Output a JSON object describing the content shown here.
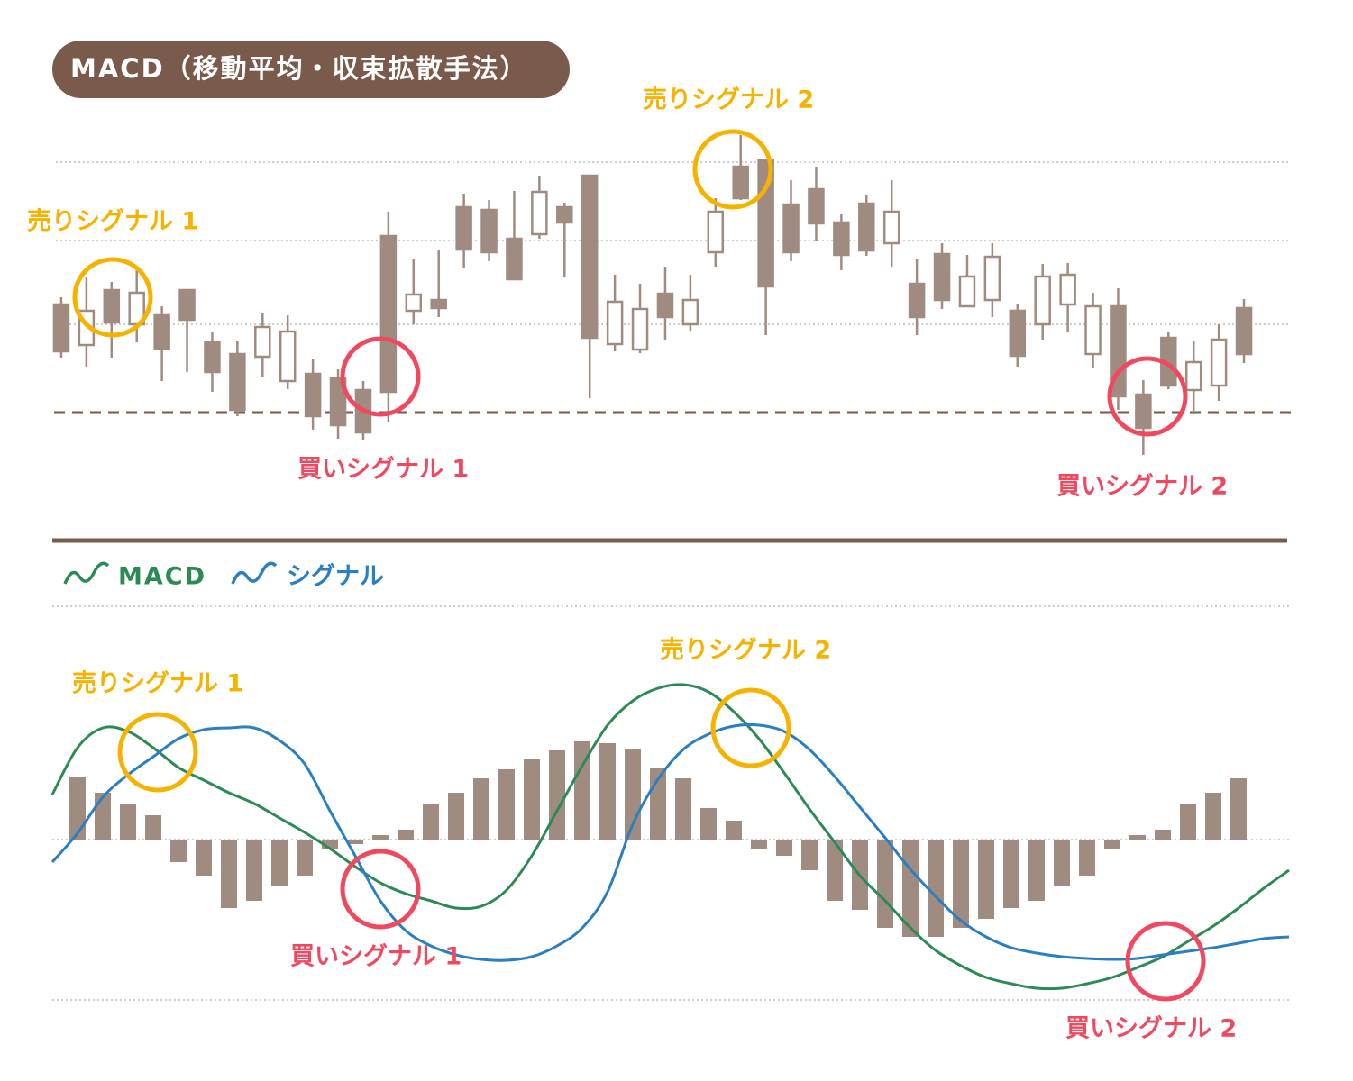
{
  "chart_data": [
    {
      "type": "candlestick",
      "title": "MACD（移動平均・収束拡散手法）",
      "annotations": [
        "売りシグナル 1",
        "売りシグナル 2",
        "買いシグナル 1",
        "買いシグナル 2"
      ],
      "categories": [
        null,
        null,
        null,
        null,
        null,
        null,
        null,
        null,
        null,
        null,
        null,
        null,
        null,
        null,
        null,
        null,
        null,
        null,
        null,
        null,
        null,
        null,
        null,
        null,
        null,
        null,
        null,
        null,
        null,
        null,
        null,
        null,
        null,
        null,
        null,
        null,
        null,
        null,
        null,
        null,
        null,
        null,
        null,
        null,
        null,
        null,
        null,
        null
      ],
      "open": [
        162,
        117,
        178,
        140,
        150,
        178,
        120,
        107,
        104,
        77,
        85,
        80,
        67,
        238,
        155,
        167,
        270,
        267,
        235,
        240,
        270,
        305,
        118,
        112,
        174,
        140,
        220,
        315,
        322,
        273,
        290,
        253,
        274,
        230,
        185,
        218,
        160,
        167,
        155,
        140,
        162,
        107,
        160,
        62,
        125,
        67,
        72,
        158
      ],
      "high": [
        170,
        192,
        187,
        200,
        160,
        178,
        132,
        122,
        152,
        150,
        102,
        90,
        77,
        265,
        212,
        222,
        285,
        278,
        288,
        305,
        275,
        305,
        195,
        185,
        204,
        195,
        280,
        350,
        322,
        300,
        315,
        262,
        284,
        300,
        212,
        230,
        217,
        230,
        162,
        207,
        208,
        175,
        180,
        78,
        132,
        122,
        140,
        168
      ],
      "low": [
        103,
        93,
        103,
        120,
        77,
        87,
        65,
        38,
        82,
        68,
        23,
        13,
        12,
        32,
        140,
        148,
        203,
        210,
        190,
        235,
        193,
        58,
        110,
        108,
        123,
        133,
        204,
        278,
        128,
        210,
        233,
        200,
        216,
        204,
        128,
        157,
        159,
        148,
        93,
        123,
        132,
        92,
        45,
        -5,
        68,
        40,
        55,
        97
      ],
      "close": [
        110,
        155,
        142,
        175,
        113,
        145,
        87,
        45,
        137,
        132,
        38,
        28,
        20,
        65,
        173,
        158,
        223,
        220,
        190,
        287,
        253,
        125,
        165,
        157,
        148,
        167,
        265,
        280,
        182,
        220,
        252,
        217,
        222,
        265,
        148,
        167,
        193,
        215,
        105,
        193,
        195,
        160,
        60,
        25,
        72,
        98,
        123,
        107
      ],
      "color": "#a08b80",
      "ylim": [
        -20,
        350
      ]
    },
    {
      "type": "line",
      "annotations": [
        "売りシグナル 1",
        "売りシグナル 2",
        "買いシグナル 1",
        "買いシグナル 2"
      ],
      "categories": [
        null,
        null,
        null,
        null,
        null,
        null,
        null,
        null,
        null,
        null,
        null,
        null,
        null,
        null,
        null,
        null,
        null,
        null,
        null,
        null,
        null,
        null,
        null,
        null,
        null,
        null,
        null,
        null,
        null,
        null,
        null,
        null,
        null,
        null,
        null,
        null,
        null,
        null,
        null,
        null,
        null,
        null,
        null,
        null,
        null,
        null,
        null,
        null,
        null,
        null
      ],
      "series": [
        {
          "name": "MACD",
          "color": "#2b8a55",
          "values": [
            50,
            102,
            124,
            120,
            102,
            80,
            66,
            52,
            40,
            24,
            8,
            -10,
            -30,
            -48,
            -60,
            -68,
            -76,
            -74,
            -56,
            -18,
            32,
            82,
            127,
            154,
            168,
            172,
            164,
            142,
            112,
            74,
            34,
            -3,
            -40,
            -68,
            -98,
            -123,
            -140,
            -153,
            -160,
            -165,
            -165,
            -160,
            -153,
            -142,
            -130,
            -113,
            -96,
            -76,
            -54,
            -34
          ]
        },
        {
          "name": "シグナル",
          "color": "#2a7fc1",
          "values": [
            -25,
            7,
            47,
            72,
            92,
            112,
            122,
            124,
            124,
            110,
            84,
            32,
            -18,
            -68,
            -101,
            -118,
            -128,
            -133,
            -134,
            -130,
            -118,
            -98,
            -58,
            17,
            67,
            100,
            117,
            126,
            127,
            120,
            100,
            70,
            36,
            2,
            -33,
            -63,
            -90,
            -108,
            -120,
            -126,
            -130,
            -132,
            -133,
            -132,
            -128,
            -124,
            -120,
            -115,
            -110,
            -108
          ]
        }
      ],
      "histogram_values": [
        null,
        70,
        52,
        40,
        27,
        -25,
        -40,
        -76,
        -68,
        -52,
        -40,
        -10,
        -5,
        5,
        11,
        40,
        52,
        68,
        78,
        89,
        99,
        109,
        107,
        101,
        80,
        68,
        35,
        21,
        -10,
        -18,
        -34,
        -68,
        -78,
        -98,
        -108,
        -108,
        -98,
        -88,
        -76,
        -68,
        -52,
        -40,
        -10,
        5,
        11,
        40,
        52,
        68,
        null,
        null
      ],
      "histogram_color": "#a08b80",
      "ylim": [
        -200,
        250
      ]
    }
  ]
}
